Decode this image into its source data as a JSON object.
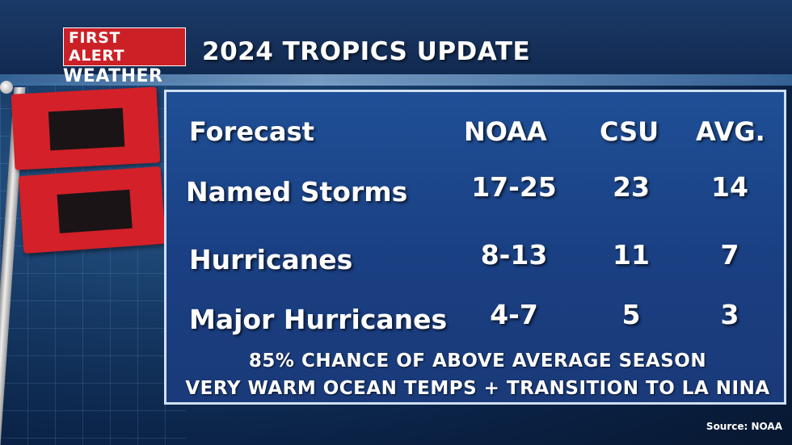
{
  "header": {
    "logo_line1": "FIRST ALERT",
    "logo_line2": "WEATHER",
    "title": "2024 TROPICS UPDATE"
  },
  "table": {
    "columns": [
      "Forecast",
      "NOAA",
      "CSU",
      "AVG."
    ],
    "rows": [
      {
        "label": "Named Storms",
        "noaa": "17-25",
        "csu": "23",
        "avg": "14"
      },
      {
        "label": "Hurricanes",
        "noaa": "8-13",
        "csu": "11",
        "avg": "7"
      },
      {
        "label": "Major Hurricanes",
        "noaa": "4-7",
        "csu": "5",
        "avg": "3"
      }
    ]
  },
  "notes": {
    "line1": "85% CHANCE OF ABOVE AVERAGE SEASON",
    "line2": "VERY WARM OCEAN TEMPS + TRANSITION TO LA NINA"
  },
  "source": "Source: NOAA",
  "colors": {
    "flag_red": "#d42028",
    "flag_black": "#1a1416",
    "panel_blue": "#1f4f96",
    "logo_red": "#cc2027"
  }
}
